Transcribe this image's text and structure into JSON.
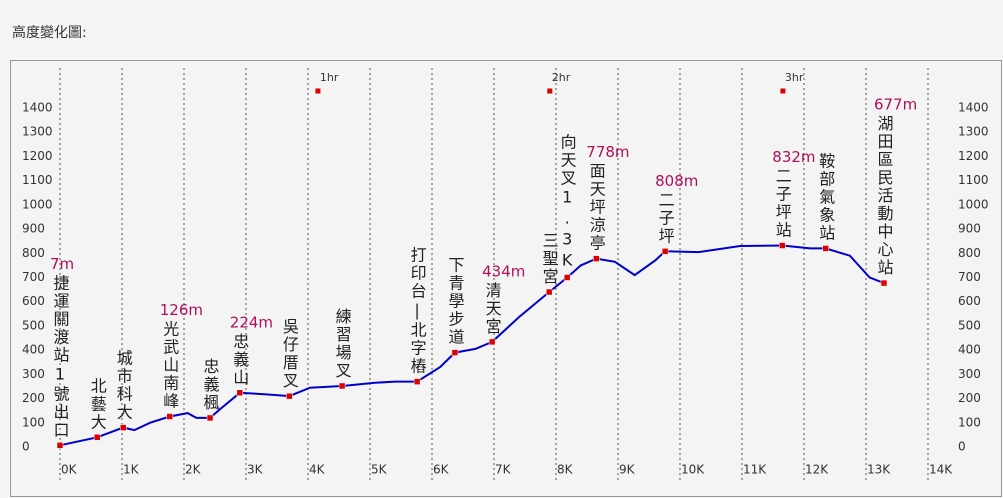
{
  "chart_data": {
    "type": "line",
    "title": "高度變化圖:",
    "x": [
      0,
      0.6,
      1.02,
      1.2,
      1.45,
      1.77,
      2.06,
      2.2,
      2.42,
      2.6,
      2.9,
      3.3,
      3.7,
      4.03,
      4.55,
      5.08,
      5.4,
      5.76,
      6.13,
      6.37,
      6.7,
      6.97,
      7.42,
      7.89,
      8.18,
      8.4,
      8.65,
      8.95,
      9.27,
      9.6,
      9.76,
      10.3,
      10.97,
      11.65,
      12.1,
      12.35,
      12.74,
      13.06,
      13.29
    ],
    "values": [
      7,
      40,
      80,
      70,
      100,
      126,
      140,
      120,
      120,
      160,
      224,
      218,
      210,
      245,
      252,
      265,
      270,
      270,
      330,
      390,
      405,
      434,
      540,
      640,
      700,
      750,
      778,
      765,
      710,
      770,
      808,
      805,
      830,
      832,
      820,
      820,
      790,
      700,
      677
    ],
    "color": "#0000cc",
    "waypoints": {
      "names": [
        "捷運關渡站1號出口",
        "北藝大",
        "城市科大",
        "光武山南峰",
        "忠義楓",
        "忠義山",
        "吳仔厝叉",
        "練習場叉",
        "打印台|北字樁",
        "下青學步道",
        "清天宮",
        "三聖宮",
        "向天叉1.3K",
        "面天坪涼亭",
        "二子坪",
        "二子坪站",
        "鞍部氣象站",
        "湖田區民活動中心站"
      ],
      "x": [
        0,
        0.6,
        1.02,
        1.77,
        2.42,
        2.9,
        3.7,
        4.55,
        5.76,
        6.37,
        6.97,
        7.89,
        8.18,
        8.65,
        9.76,
        11.65,
        12.35,
        13.29
      ],
      "values": [
        7,
        40,
        80,
        126,
        120,
        224,
        210,
        252,
        270,
        390,
        434,
        640,
        700,
        778,
        808,
        832,
        820,
        677
      ],
      "value_labels": [
        "7m",
        null,
        null,
        "126m",
        null,
        "224m",
        null,
        null,
        null,
        null,
        "434m",
        null,
        null,
        "778m",
        "808m",
        "832m",
        null,
        "677m"
      ],
      "color": "#dd0000",
      "label_color": "#b0105a"
    },
    "time_markers": {
      "x": [
        4.16,
        7.9,
        11.66
      ],
      "labels": [
        "1hr",
        "2hr",
        "3hr"
      ]
    },
    "xlim": [
      0,
      14
    ],
    "xticks": [
      {
        "value": 0,
        "label": "0K"
      },
      {
        "value": 1,
        "label": "1K"
      },
      {
        "value": 2,
        "label": "2K"
      },
      {
        "value": 3,
        "label": "3K"
      },
      {
        "value": 4,
        "label": "4K"
      },
      {
        "value": 5,
        "label": "5K"
      },
      {
        "value": 6,
        "label": "6K"
      },
      {
        "value": 7,
        "label": "7K"
      },
      {
        "value": 8,
        "label": "8K"
      },
      {
        "value": 9,
        "label": "9K"
      },
      {
        "value": 10,
        "label": "10K"
      },
      {
        "value": 11,
        "label": "11K"
      },
      {
        "value": 12,
        "label": "12K"
      },
      {
        "value": 13,
        "label": "13K"
      },
      {
        "value": 14,
        "label": "14K"
      }
    ],
    "ylim": [
      0,
      1400
    ],
    "yticks": [
      0,
      100,
      200,
      300,
      400,
      500,
      600,
      700,
      800,
      900,
      1000,
      1100,
      1200,
      1300,
      1400
    ],
    "grid": true
  }
}
